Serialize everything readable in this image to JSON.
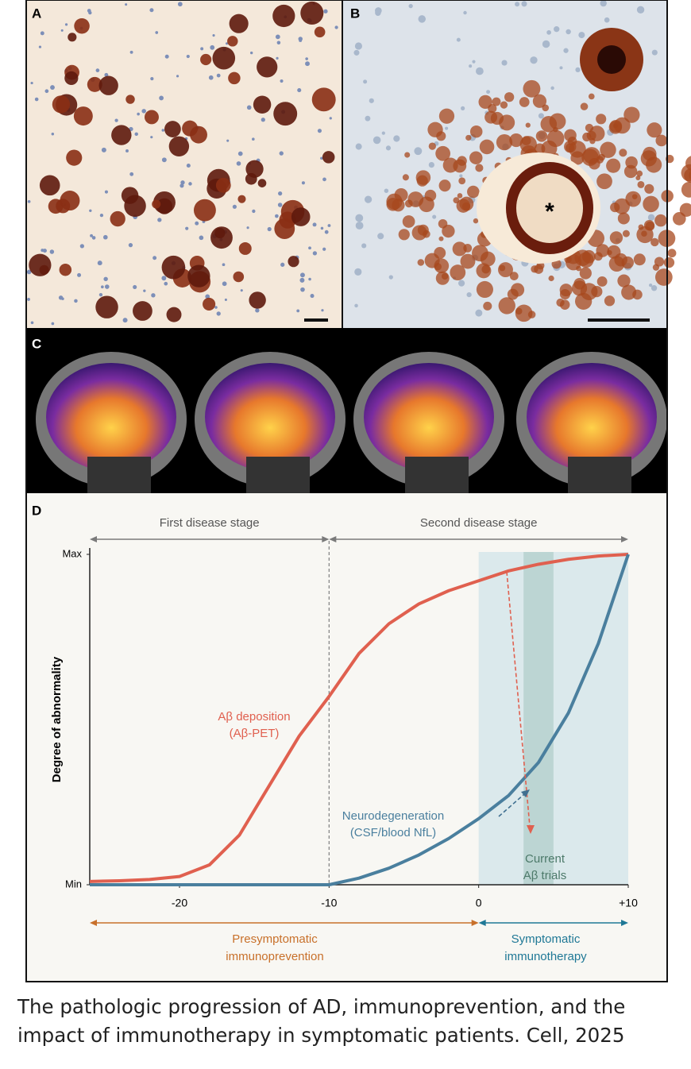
{
  "panels": {
    "a": {
      "label": "A"
    },
    "b": {
      "label": "B",
      "marker": "*"
    },
    "c": {
      "label": "C"
    }
  },
  "chart_data": {
    "type": "line",
    "panel_label": "D",
    "y_label": "Degree of abnormality",
    "x": [
      -26,
      -24,
      -22,
      -20,
      -18,
      -16,
      -14,
      -12,
      -10,
      -8,
      -6,
      -4,
      -2,
      0,
      2,
      4,
      6,
      8,
      10
    ],
    "series": [
      {
        "name": "Aβ deposition",
        "sublabel": "(Aβ-PET)",
        "color": "#e0604f",
        "values": [
          1,
          1.2,
          1.6,
          2.5,
          6,
          15,
          30,
          45,
          57,
          70,
          79,
          85,
          89,
          92,
          95,
          97,
          98.5,
          99.5,
          100
        ]
      },
      {
        "name": "Neurodegeneration",
        "sublabel": "(CSF/blood NfL)",
        "color": "#4a7f9e",
        "values": [
          0,
          0,
          0,
          0,
          0,
          0,
          0,
          0,
          0,
          2,
          5,
          9,
          14,
          20,
          27,
          37,
          52,
          73,
          100
        ]
      }
    ],
    "xlim": [
      -26,
      10
    ],
    "ylim": [
      0,
      100
    ],
    "xticks": [
      -20,
      -10,
      0,
      {
        "value": 10,
        "label": "+10"
      }
    ],
    "yticks": [
      {
        "value": 0,
        "label": "Min"
      },
      {
        "value": 100,
        "label": "Max"
      }
    ],
    "grid": false,
    "stages": [
      {
        "label": "First disease stage",
        "x": [
          -26,
          -10
        ]
      },
      {
        "label": "Second disease stage",
        "x": [
          -10,
          10
        ]
      }
    ],
    "bands": [
      {
        "x": [
          0,
          10
        ],
        "color": "#dbe9ec"
      },
      {
        "x": [
          3,
          5
        ],
        "color": "#bcd5d3",
        "label": [
          "Current",
          "Aβ trials"
        ]
      }
    ],
    "phases": [
      {
        "label": [
          "Presymptomatic",
          "immunoprevention"
        ],
        "x": [
          -26,
          0
        ],
        "color": "#c8702a"
      },
      {
        "label": [
          "Symptomatic",
          "immunotherapy"
        ],
        "x": [
          0,
          10
        ],
        "color": "#1f7896"
      }
    ]
  },
  "caption": "The pathologic progression of AD, immunoprevention, and the impact of immunotherapy in symptomatic patients. Cell, 2025"
}
